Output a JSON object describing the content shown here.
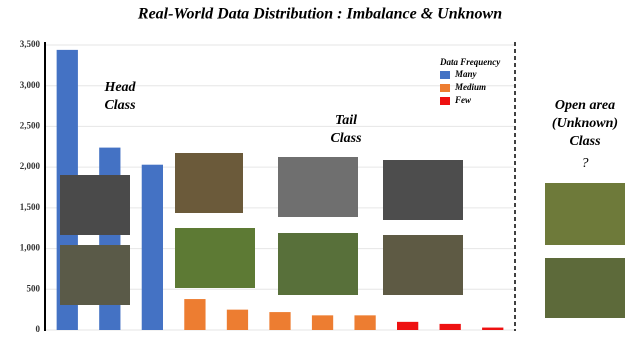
{
  "chart_data": {
    "type": "bar",
    "title": "Real-World Data Distribution : Imbalance & Unknown",
    "categories": [
      null,
      null,
      null,
      null,
      null,
      null,
      null,
      null,
      null,
      null,
      null
    ],
    "series": [
      {
        "name": "Many",
        "color": "#4472c4",
        "values": [
          3440,
          2240,
          2030,
          null,
          null,
          null,
          null,
          null,
          null,
          null,
          null
        ]
      },
      {
        "name": "Medium",
        "color": "#ed7d31",
        "values": [
          null,
          null,
          null,
          380,
          250,
          220,
          180,
          180,
          null,
          null,
          null
        ]
      },
      {
        "name": "Few",
        "color": "#ee1111",
        "values": [
          null,
          null,
          null,
          null,
          null,
          null,
          null,
          null,
          100,
          75,
          30
        ]
      }
    ],
    "ylim": [
      0,
      3500
    ],
    "yticks": [
      0,
      500,
      {
        "value": 1000,
        "label": "1,000"
      },
      {
        "value": 1500,
        "label": "1,500"
      },
      {
        "value": 2000,
        "label": "2,000"
      },
      {
        "value": 2500,
        "label": "2,500"
      },
      {
        "value": 3000,
        "label": "3,000"
      },
      {
        "value": 3500,
        "label": "3,500"
      }
    ],
    "grid": true,
    "legend_title": "Data Frequency",
    "legend": "upper right",
    "annotations": {
      "head": [
        "Head",
        "Class"
      ],
      "tail": [
        "Tail",
        "Class"
      ],
      "open": [
        "Open area",
        "(Unknown)",
        "Class",
        "?"
      ]
    }
  }
}
